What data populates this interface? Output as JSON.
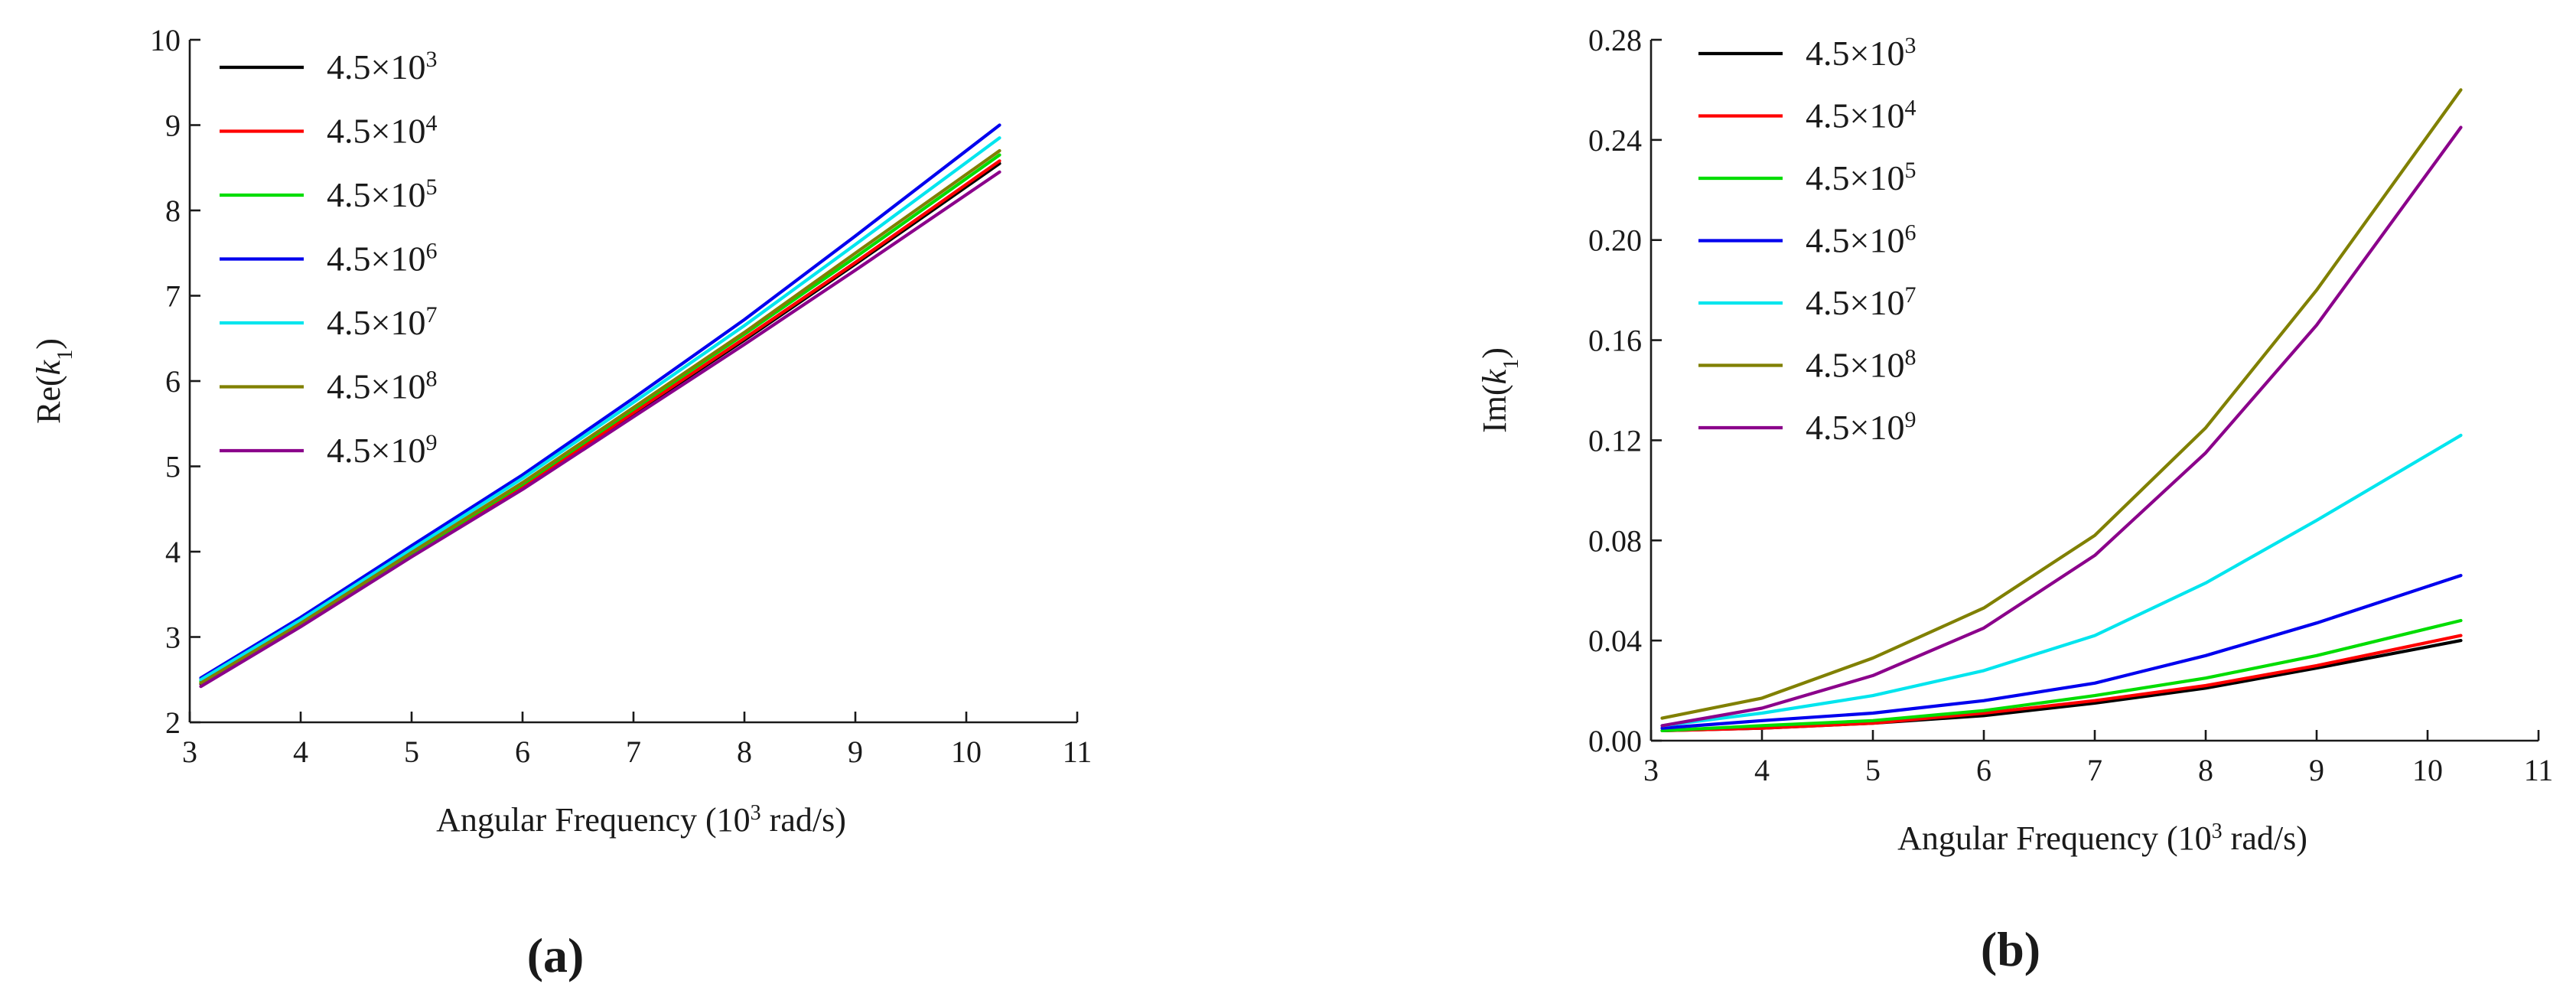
{
  "chart_data": [
    {
      "type": "line",
      "panel_label": "(a)",
      "xlabel": "Angular Frequency (10",
      "xlabel_sup": "3",
      "xlabel_tail": " rad/s)",
      "ylabel": "Re(",
      "ylabel_var": "k",
      "ylabel_sub": "1",
      "ylabel_tail": ")",
      "xlim": [
        3,
        11
      ],
      "ylim": [
        2,
        10
      ],
      "xticks": [
        3,
        4,
        5,
        6,
        7,
        8,
        9,
        10,
        11
      ],
      "yticks": [
        2,
        3,
        4,
        5,
        6,
        7,
        8,
        9,
        10
      ],
      "tick_decimals": 0,
      "legend_position": "top-left",
      "x": [
        3.1,
        4.0,
        5.0,
        6.0,
        7.0,
        8.0,
        9.0,
        10.3
      ],
      "series": [
        {
          "name": "4.5×10",
          "exp": "3",
          "color": "#000000",
          "values": [
            2.45,
            3.13,
            3.95,
            4.75,
            5.62,
            6.48,
            7.37,
            8.55
          ]
        },
        {
          "name": "4.5×10",
          "exp": "4",
          "color": "#ff0000",
          "values": [
            2.46,
            3.14,
            3.96,
            4.76,
            5.63,
            6.5,
            7.39,
            8.58
          ]
        },
        {
          "name": "4.5×10",
          "exp": "5",
          "color": "#00dd00",
          "values": [
            2.48,
            3.16,
            3.98,
            4.79,
            5.67,
            6.55,
            7.45,
            8.65
          ]
        },
        {
          "name": "4.5×10",
          "exp": "6",
          "color": "#0000ee",
          "values": [
            2.52,
            3.23,
            4.07,
            4.9,
            5.8,
            6.72,
            7.7,
            9.0
          ]
        },
        {
          "name": "4.5×10",
          "exp": "7",
          "color": "#00e5ee",
          "values": [
            2.5,
            3.2,
            4.03,
            4.86,
            5.75,
            6.65,
            7.6,
            8.85
          ]
        },
        {
          "name": "4.5×10",
          "exp": "8",
          "color": "#808000",
          "values": [
            2.46,
            3.16,
            3.99,
            4.81,
            5.69,
            6.57,
            7.5,
            8.7
          ]
        },
        {
          "name": "4.5×10",
          "exp": "9",
          "color": "#8b008b",
          "values": [
            2.42,
            3.12,
            3.94,
            4.73,
            5.58,
            6.43,
            7.3,
            8.45
          ]
        }
      ]
    },
    {
      "type": "line",
      "panel_label": "(b)",
      "xlabel": "Angular Frequency (10",
      "xlabel_sup": "3",
      "xlabel_tail": " rad/s)",
      "ylabel": "Im(",
      "ylabel_var": "k",
      "ylabel_sub": "1",
      "ylabel_tail": ")",
      "xlim": [
        3,
        11
      ],
      "ylim": [
        0,
        0.28
      ],
      "xticks": [
        3,
        4,
        5,
        6,
        7,
        8,
        9,
        10,
        11
      ],
      "yticks": [
        0.0,
        0.04,
        0.08,
        0.12,
        0.16,
        0.2,
        0.24,
        0.28
      ],
      "tick_decimals": 2,
      "legend_position": "top-left",
      "x": [
        3.1,
        4.0,
        5.0,
        6.0,
        7.0,
        8.0,
        9.0,
        10.3
      ],
      "series": [
        {
          "name": "4.5×10",
          "exp": "3",
          "color": "#000000",
          "values": [
            0.004,
            0.005,
            0.007,
            0.01,
            0.015,
            0.021,
            0.029,
            0.04
          ]
        },
        {
          "name": "4.5×10",
          "exp": "4",
          "color": "#ff0000",
          "values": [
            0.004,
            0.005,
            0.007,
            0.011,
            0.016,
            0.022,
            0.03,
            0.042
          ]
        },
        {
          "name": "4.5×10",
          "exp": "5",
          "color": "#00dd00",
          "values": [
            0.004,
            0.006,
            0.008,
            0.012,
            0.018,
            0.025,
            0.034,
            0.048
          ]
        },
        {
          "name": "4.5×10",
          "exp": "6",
          "color": "#0000ee",
          "values": [
            0.005,
            0.008,
            0.011,
            0.016,
            0.023,
            0.034,
            0.047,
            0.066
          ]
        },
        {
          "name": "4.5×10",
          "exp": "7",
          "color": "#00e5ee",
          "values": [
            0.006,
            0.011,
            0.018,
            0.028,
            0.042,
            0.063,
            0.088,
            0.122
          ]
        },
        {
          "name": "4.5×10",
          "exp": "8",
          "color": "#808000",
          "values": [
            0.009,
            0.017,
            0.033,
            0.053,
            0.082,
            0.125,
            0.18,
            0.26
          ]
        },
        {
          "name": "4.5×10",
          "exp": "9",
          "color": "#8b008b",
          "values": [
            0.006,
            0.013,
            0.026,
            0.045,
            0.074,
            0.115,
            0.166,
            0.245
          ]
        }
      ]
    }
  ]
}
